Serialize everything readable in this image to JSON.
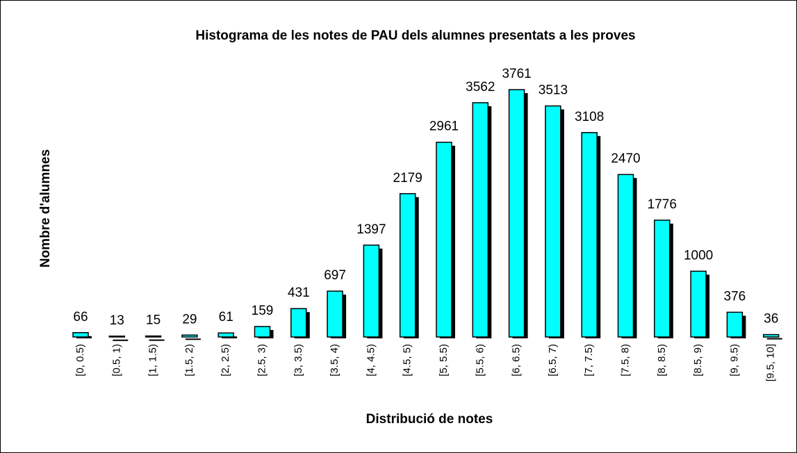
{
  "chart_data": {
    "type": "bar",
    "title": "Histograma de les notes de PAU dels alumnes presentats a les proves",
    "x_label": "Distribució de notes",
    "y_label": "Nombre d'alumnes",
    "categories": [
      "[0, 0.5)",
      "[0.5, 1)",
      "[1, 1.5)",
      "[1.5, 2)",
      "[2, 2.5)",
      "[2.5, 3)",
      "[3, 3.5)",
      "[3.5, 4)",
      "[4, 4.5)",
      "[4.5, 5)",
      "[5, 5.5)",
      "[5.5, 6)",
      "[6, 6.5)",
      "[6.5, 7)",
      "[7, 7.5)",
      "[7.5, 8)",
      "[8, 8.5)",
      "[8.5, 9)",
      "[9, 9.5)",
      "[9.5, 10]"
    ],
    "values": [
      66,
      13,
      15,
      29,
      61,
      159,
      431,
      697,
      1397,
      2179,
      2961,
      3562,
      3761,
      3513,
      3108,
      2470,
      1776,
      1000,
      376,
      36
    ],
    "color": "#00ffff"
  }
}
